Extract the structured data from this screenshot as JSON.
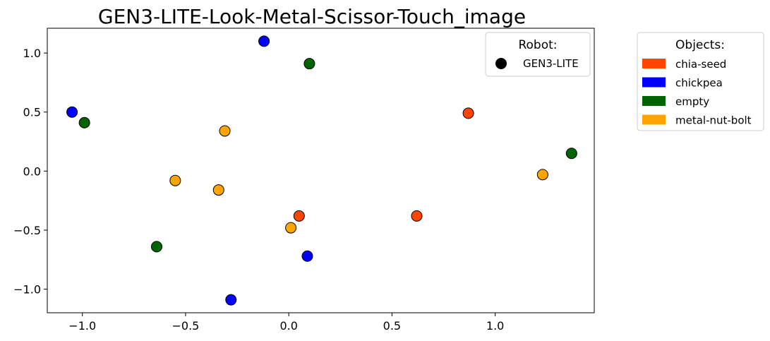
{
  "chart_data": {
    "type": "scatter",
    "title": "GEN3-LITE-Look-Metal-Scissor-Touch_image",
    "xlabel": "",
    "ylabel": "",
    "xlim": [
      -1.17,
      1.48
    ],
    "ylim": [
      -1.2,
      1.21
    ],
    "xticks": [
      -1.0,
      -0.5,
      0.0,
      0.5,
      1.0
    ],
    "xtick_labels": [
      "−1.0",
      "−0.5",
      "0.0",
      "0.5",
      "1.0"
    ],
    "yticks": [
      -1.0,
      -0.5,
      0.0,
      0.5,
      1.0
    ],
    "ytick_labels": [
      "−1.0",
      "−0.5",
      "0.0",
      "0.5",
      "1.0"
    ],
    "grid": false,
    "series": [
      {
        "name": "chia-seed",
        "color": "#ff4500",
        "points": [
          [
            0.87,
            0.49
          ],
          [
            0.05,
            -0.38
          ],
          [
            0.62,
            -0.38
          ]
        ]
      },
      {
        "name": "chickpea",
        "color": "#0000ff",
        "points": [
          [
            -0.12,
            1.1
          ],
          [
            -1.05,
            0.5
          ],
          [
            0.09,
            -0.72
          ],
          [
            -0.28,
            -1.09
          ]
        ]
      },
      {
        "name": "empty",
        "color": "#006400",
        "points": [
          [
            0.1,
            0.91
          ],
          [
            -0.99,
            0.41
          ],
          [
            1.37,
            0.15
          ],
          [
            -0.64,
            -0.64
          ]
        ]
      },
      {
        "name": "metal-nut-bolt",
        "color": "#ffa500",
        "points": [
          [
            -0.31,
            0.34
          ],
          [
            -0.55,
            -0.08
          ],
          [
            -0.34,
            -0.16
          ],
          [
            1.23,
            -0.03
          ],
          [
            0.01,
            -0.48
          ]
        ]
      }
    ],
    "legends": [
      {
        "title": "Robot:",
        "placement": "top-right",
        "entries": [
          {
            "label": "GEN3-LITE",
            "marker": "circle",
            "color": "#000000"
          }
        ]
      },
      {
        "title": "Objects:",
        "placement": "outside-right",
        "entries": [
          {
            "label": "chia-seed",
            "color": "#ff4500"
          },
          {
            "label": "chickpea",
            "color": "#0000ff"
          },
          {
            "label": "empty",
            "color": "#006400"
          },
          {
            "label": "metal-nut-bolt",
            "color": "#ffa500"
          }
        ]
      }
    ]
  }
}
